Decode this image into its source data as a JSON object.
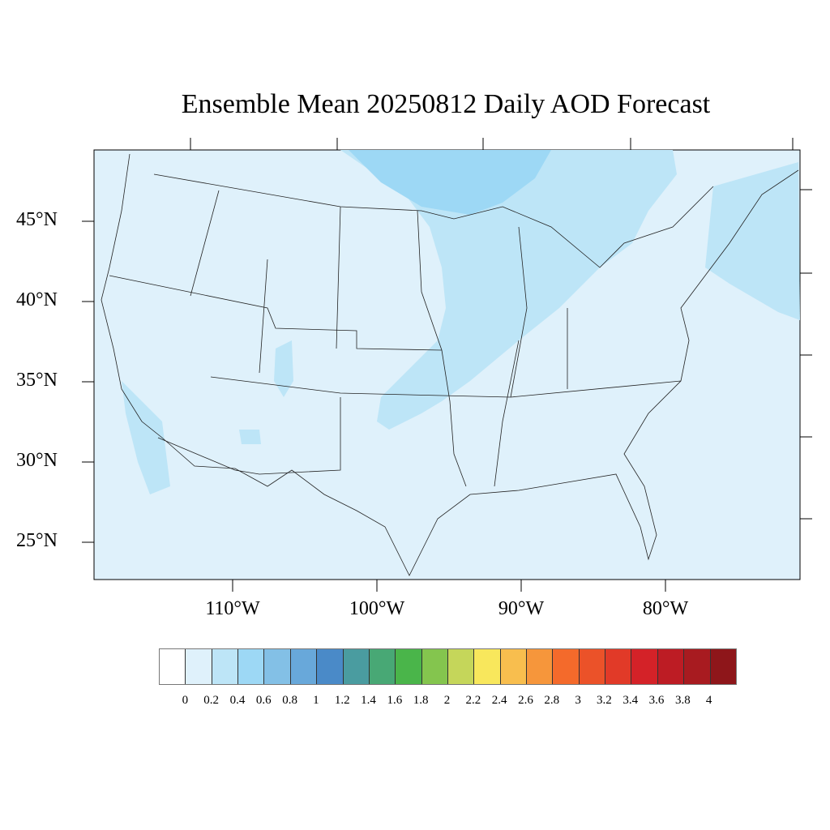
{
  "title": "Ensemble Mean 20250812 Daily AOD Forecast",
  "lat_labels": [
    "45°N",
    "40°N",
    "35°N",
    "30°N",
    "25°N"
  ],
  "lon_labels": [
    "110°W",
    "100°W",
    "90°W",
    "80°W"
  ],
  "colorbar": {
    "labels": [
      "0",
      "0.2",
      "0.4",
      "0.6",
      "0.8",
      "1",
      "1.2",
      "1.4",
      "1.6",
      "1.8",
      "2",
      "2.2",
      "2.4",
      "2.6",
      "2.8",
      "3",
      "3.2",
      "3.4",
      "3.6",
      "3.8",
      "4"
    ],
    "colors": [
      "#ffffff",
      "#dff1fb",
      "#bde5f7",
      "#9dd8f5",
      "#83c0e6",
      "#68a8da",
      "#4a8ac8",
      "#4a9ca0",
      "#48a875",
      "#4ab54a",
      "#84c54e",
      "#c5d65a",
      "#f8e75c",
      "#f8be4e",
      "#f6963b",
      "#f46a2b",
      "#eb5229",
      "#e13a28",
      "#d42228",
      "#bd1c24",
      "#a81b20",
      "#8e161a"
    ]
  }
}
